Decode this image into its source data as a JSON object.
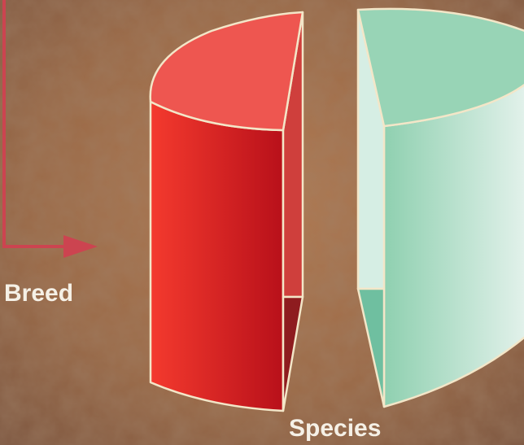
{
  "labels": {
    "breed": "Breed",
    "species": "Species"
  }
}
